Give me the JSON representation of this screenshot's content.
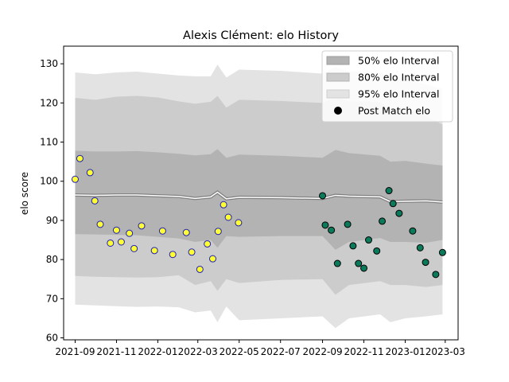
{
  "chart_data": {
    "type": "scatter",
    "title": "Alexis Clément: elo History",
    "xlabel": "",
    "ylabel": "elo score",
    "xlim": [
      "2021-08-15",
      "2023-03-20"
    ],
    "ylim": [
      59.5,
      134.5
    ],
    "y_ticks": [
      60,
      70,
      80,
      90,
      100,
      110,
      120,
      130
    ],
    "x_ticks": [
      "2021-09",
      "2021-11",
      "2022-01",
      "2022-03",
      "2022-05",
      "2022-07",
      "2022-09",
      "2022-11",
      "2023-01",
      "2023-03"
    ],
    "x_tick_dates": [
      "2021-09-01",
      "2021-11-01",
      "2022-01-01",
      "2022-03-01",
      "2022-05-01",
      "2022-07-01",
      "2022-09-01",
      "2022-11-01",
      "2023-01-01",
      "2023-03-01"
    ],
    "grid": false,
    "legend": {
      "placement": "top-right",
      "entries": [
        "50% elo Interval",
        "80% elo Interval",
        "95% elo Interval",
        "Post Match elo"
      ]
    },
    "colors": {
      "band50": "#b3b3b3",
      "band80": "#cccccc",
      "band95": "#e3e3e3",
      "mean_line": "#808080",
      "mean_highlight": "#ffffff",
      "point_edge_1": "#1f1fb4",
      "point_fill_1": "#ffff33",
      "point_edge_2": "#000000",
      "point_fill_2": "#0b7a5a"
    },
    "bands": [
      {
        "x": "2021-09-01",
        "m": 96.5,
        "lo50": 86.5,
        "hi50": 107.8,
        "lo80": 75.8,
        "hi80": 121.3,
        "lo95": 68.5,
        "hi95": 127.8
      },
      {
        "x": "2021-10-01",
        "m": 96.4,
        "lo50": 86.4,
        "hi50": 107.6,
        "lo80": 75.6,
        "hi80": 120.8,
        "lo95": 68.3,
        "hi95": 127.3
      },
      {
        "x": "2021-11-01",
        "m": 96.5,
        "lo50": 86.3,
        "hi50": 107.6,
        "lo80": 75.5,
        "hi80": 121.6,
        "lo95": 68.1,
        "hi95": 127.8
      },
      {
        "x": "2021-12-01",
        "m": 96.5,
        "lo50": 86.2,
        "hi50": 107.7,
        "lo80": 75.4,
        "hi80": 121.8,
        "lo95": 67.9,
        "hi95": 128.0
      },
      {
        "x": "2022-01-01",
        "m": 96.3,
        "lo50": 85.8,
        "hi50": 107.4,
        "lo80": 75.5,
        "hi80": 121.4,
        "lo95": 68.0,
        "hi95": 127.5
      },
      {
        "x": "2022-02-01",
        "m": 96.1,
        "lo50": 85.4,
        "hi50": 107.0,
        "lo80": 76.0,
        "hi80": 120.4,
        "lo95": 67.8,
        "hi95": 127.0
      },
      {
        "x": "2022-02-25",
        "m": 95.6,
        "lo50": 84.5,
        "hi50": 106.6,
        "lo80": 73.5,
        "hi80": 119.8,
        "lo95": 66.5,
        "hi95": 126.8
      },
      {
        "x": "2022-03-20",
        "m": 96.0,
        "lo50": 85.0,
        "hi50": 106.9,
        "lo80": 74.5,
        "hi80": 120.3,
        "lo95": 67.0,
        "hi95": 126.8
      },
      {
        "x": "2022-03-30",
        "m": 97.2,
        "lo50": 83.0,
        "hi50": 108.2,
        "lo80": 72.0,
        "hi80": 121.8,
        "lo95": 64.0,
        "hi95": 129.8
      },
      {
        "x": "2022-04-12",
        "m": 95.5,
        "lo50": 86.0,
        "hi50": 106.0,
        "lo80": 75.0,
        "hi80": 118.8,
        "lo95": 68.0,
        "hi95": 126.5
      },
      {
        "x": "2022-05-01",
        "m": 95.9,
        "lo50": 85.8,
        "hi50": 106.8,
        "lo80": 74.0,
        "hi80": 120.8,
        "lo95": 64.5,
        "hi95": 128.5
      },
      {
        "x": "2022-07-01",
        "m": 95.8,
        "lo50": 86.0,
        "hi50": 106.5,
        "lo80": 74.8,
        "hi80": 120.5,
        "lo95": 65.0,
        "hi95": 128.2
      },
      {
        "x": "2022-09-01",
        "m": 95.6,
        "lo50": 86.0,
        "hi50": 106.0,
        "lo80": 75.0,
        "hi80": 120.0,
        "lo95": 65.5,
        "hi95": 127.5
      },
      {
        "x": "2022-09-20",
        "m": 96.4,
        "lo50": 82.5,
        "hi50": 108.0,
        "lo80": 71.0,
        "hi80": 121.5,
        "lo95": 62.5,
        "hi95": 129.2
      },
      {
        "x": "2022-10-10",
        "m": 96.2,
        "lo50": 84.5,
        "hi50": 107.2,
        "lo80": 73.5,
        "hi80": 120.5,
        "lo95": 65.0,
        "hi95": 128.0
      },
      {
        "x": "2022-11-25",
        "m": 96.0,
        "lo50": 85.5,
        "hi50": 106.5,
        "lo80": 74.5,
        "hi80": 120.2,
        "lo95": 66.0,
        "hi95": 127.8
      },
      {
        "x": "2022-12-10",
        "m": 94.8,
        "lo50": 84.5,
        "hi50": 105.0,
        "lo80": 73.5,
        "hi80": 118.5,
        "lo95": 64.0,
        "hi95": 126.0
      },
      {
        "x": "2023-01-01",
        "m": 94.9,
        "lo50": 84.5,
        "hi50": 105.2,
        "lo80": 73.5,
        "hi80": 118.8,
        "lo95": 65.0,
        "hi95": 126.0
      },
      {
        "x": "2023-02-01",
        "m": 95.0,
        "lo50": 84.3,
        "hi50": 104.5,
        "lo80": 73.0,
        "hi80": 116.5,
        "lo95": 65.5,
        "hi95": 124.8
      },
      {
        "x": "2023-02-25",
        "m": 94.7,
        "lo50": 85.0,
        "hi50": 104.0,
        "lo80": 73.5,
        "hi80": 114.5,
        "lo95": 66.0,
        "hi95": 123.5
      }
    ],
    "series": [
      {
        "group": 1,
        "x": [
          "2021-09-01",
          "2021-09-08",
          "2021-09-23",
          "2021-09-30",
          "2021-10-08",
          "2021-10-23",
          "2021-11-01",
          "2021-11-08",
          "2021-11-20",
          "2021-11-27",
          "2021-12-08",
          "2021-12-27",
          "2022-01-08",
          "2022-01-23",
          "2022-02-12",
          "2022-02-20",
          "2022-03-04",
          "2022-03-15",
          "2022-03-23",
          "2022-03-31",
          "2022-04-08",
          "2022-04-15",
          "2022-04-30"
        ],
        "y": [
          100.5,
          105.8,
          102.2,
          95.0,
          89.0,
          84.2,
          87.5,
          84.5,
          86.7,
          82.8,
          88.6,
          82.3,
          87.3,
          81.3,
          86.9,
          81.9,
          77.5,
          84.0,
          80.2,
          87.2,
          94.0,
          90.8,
          89.4
        ]
      },
      {
        "group": 2,
        "x": [
          "2022-09-01",
          "2022-09-05",
          "2022-09-14",
          "2022-09-23",
          "2022-10-08",
          "2022-10-16",
          "2022-10-24",
          "2022-11-01",
          "2022-11-08",
          "2022-11-20",
          "2022-11-28",
          "2022-12-08",
          "2022-12-14",
          "2022-12-23",
          "2023-01-12",
          "2023-01-23",
          "2023-01-31",
          "2023-02-15",
          "2023-02-25"
        ],
        "y": [
          96.3,
          88.8,
          87.5,
          79.0,
          89.0,
          83.5,
          79.0,
          77.8,
          85.0,
          82.2,
          89.8,
          97.6,
          94.3,
          91.8,
          87.3,
          83.0,
          79.3,
          76.2,
          81.8
        ]
      }
    ]
  }
}
